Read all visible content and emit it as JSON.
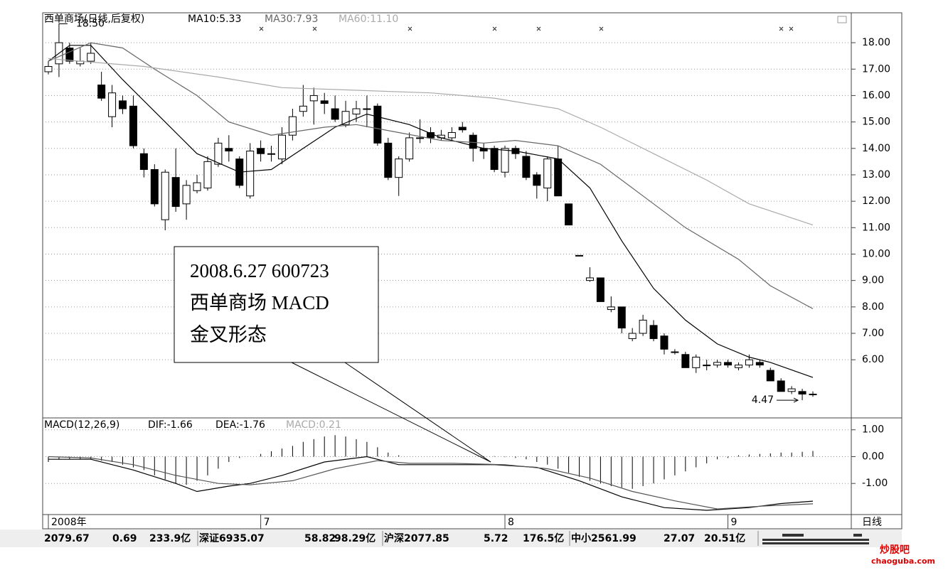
{
  "chart_data": {
    "type": "candlestick",
    "title": "西单商场(日线,后复权)",
    "ma_labels": [
      "MA10:5.33",
      "MA30:7.93",
      "MA60:11.10"
    ],
    "candles": {
      "open": [
        16.9,
        17.2,
        17.8,
        17.2,
        17.3,
        16.4,
        15.2,
        15.8,
        15.6,
        13.8,
        13.2,
        11.3,
        12.9,
        11.9,
        12.4,
        12.5,
        13.4,
        14.0,
        13.6,
        12.2,
        14.0,
        13.8,
        13.6,
        14.5,
        15.4,
        15.8,
        15.8,
        15.5,
        14.9,
        15.3,
        15.5,
        15.6,
        14.2,
        12.9,
        13.6,
        14.4,
        14.6,
        14.4,
        14.4,
        14.8,
        14.5,
        14.0,
        14.0,
        13.1,
        14.0,
        13.7,
        13.0,
        12.5,
        13.6,
        11.9,
        9.95,
        9.0,
        9.1,
        7.9,
        8.0,
        6.8,
        7.0,
        7.3,
        6.9,
        6.3,
        6.2,
        5.7,
        5.8,
        5.8,
        5.9,
        5.7,
        5.8,
        5.9,
        5.6,
        5.2,
        4.8,
        4.8,
        4.7
      ],
      "high": [
        17.3,
        18.5,
        18.0,
        17.8,
        18.0,
        16.9,
        16.4,
        16.0,
        16.0,
        14.0,
        13.4,
        13.2,
        14.0,
        12.8,
        13.0,
        13.7,
        14.4,
        14.5,
        13.7,
        14.2,
        14.3,
        14.1,
        14.8,
        15.5,
        16.4,
        16.3,
        16.1,
        16.0,
        15.8,
        15.8,
        16.0,
        15.7,
        14.4,
        13.7,
        14.6,
        15.1,
        14.8,
        14.7,
        14.8,
        15.0,
        14.6,
        14.2,
        14.1,
        14.1,
        14.1,
        13.9,
        13.1,
        13.7,
        14.1,
        11.9,
        9.95,
        9.5,
        9.1,
        8.4,
        8.0,
        7.2,
        7.7,
        7.5,
        7.0,
        6.4,
        6.3,
        6.2,
        6.0,
        6.0,
        6.0,
        5.9,
        6.2,
        6.0,
        5.7,
        5.3,
        5.0,
        4.9,
        4.8
      ],
      "low": [
        16.8,
        16.7,
        17.2,
        17.1,
        17.2,
        15.8,
        14.8,
        15.3,
        14.0,
        12.9,
        11.8,
        10.9,
        11.6,
        11.3,
        12.3,
        12.4,
        13.3,
        13.5,
        12.5,
        12.1,
        13.5,
        13.5,
        13.4,
        14.3,
        15.2,
        14.9,
        15.3,
        15.0,
        14.8,
        15.0,
        14.8,
        14.1,
        12.8,
        12.2,
        13.5,
        14.2,
        14.2,
        14.3,
        14.3,
        14.6,
        13.5,
        13.6,
        13.1,
        12.9,
        13.6,
        12.8,
        12.1,
        12.0,
        12.2,
        11.1,
        9.95,
        8.95,
        8.2,
        7.8,
        7.0,
        6.7,
        6.9,
        6.7,
        6.2,
        6.2,
        5.7,
        5.5,
        5.6,
        5.7,
        5.7,
        5.6,
        5.7,
        5.7,
        5.2,
        4.8,
        4.7,
        4.47,
        4.6
      ],
      "close": [
        17.1,
        18.0,
        17.3,
        17.3,
        17.6,
        15.9,
        16.1,
        15.5,
        14.1,
        13.2,
        11.9,
        13.1,
        11.8,
        12.6,
        12.7,
        13.5,
        14.2,
        13.9,
        12.6,
        13.9,
        13.8,
        13.8,
        14.5,
        15.2,
        15.6,
        16.0,
        15.7,
        15.1,
        15.4,
        15.5,
        15.5,
        14.2,
        12.9,
        13.6,
        14.4,
        14.4,
        14.4,
        14.5,
        14.6,
        14.7,
        14.0,
        13.9,
        13.2,
        14.0,
        13.8,
        12.9,
        12.6,
        13.6,
        12.2,
        11.1,
        9.95,
        9.1,
        8.2,
        8.0,
        7.2,
        7.0,
        7.5,
        6.8,
        6.4,
        6.3,
        5.7,
        6.1,
        5.8,
        5.9,
        5.8,
        5.8,
        6.0,
        5.8,
        5.2,
        4.8,
        4.9,
        4.7,
        4.7
      ]
    },
    "series": [
      {
        "color": "#000000",
        "x": [
          0,
          2,
          4,
          7,
          11,
          14,
          18,
          21,
          24,
          27,
          30,
          34,
          37,
          41,
          44,
          48,
          51,
          54,
          57,
          60,
          63,
          66,
          68,
          72
        ],
        "values": [
          17.3,
          17.9,
          17.9,
          16.6,
          15.0,
          13.8,
          13.1,
          13.2,
          14.0,
          14.8,
          15.3,
          14.9,
          14.4,
          14.0,
          13.9,
          13.6,
          12.5,
          10.5,
          8.7,
          7.5,
          6.6,
          6.1,
          5.9,
          5.33
        ]
      },
      {
        "color": "#666666",
        "x": [
          0,
          4,
          7,
          10,
          14,
          17,
          21,
          26,
          29,
          33,
          37,
          41,
          44,
          48,
          52,
          56,
          60,
          65,
          68,
          72
        ],
        "values": [
          17.3,
          18.0,
          17.8,
          17.0,
          16.0,
          15.0,
          14.5,
          14.8,
          14.9,
          14.6,
          14.3,
          14.2,
          14.3,
          14.1,
          13.4,
          12.2,
          11.0,
          9.8,
          8.8,
          7.93
        ]
      },
      {
        "color": "#aaaaaa",
        "x": [
          0,
          9,
          16,
          22,
          29,
          36,
          42,
          48,
          52,
          57,
          62,
          66,
          72
        ],
        "values": [
          17.4,
          17.1,
          16.7,
          16.3,
          16.2,
          16.1,
          15.9,
          15.5,
          14.8,
          13.8,
          12.8,
          11.9,
          11.1
        ]
      }
    ],
    "annotations": [
      {
        "x": 1,
        "value": 18.5,
        "label": "18.50"
      },
      {
        "x": 71,
        "value": 4.47,
        "label": "4.47"
      }
    ],
    "xlim": [
      0,
      72
    ],
    "xticks": [
      {
        "value": 0,
        "label": "2008年"
      },
      {
        "value": 20,
        "label": "7"
      },
      {
        "value": 43,
        "label": "8"
      },
      {
        "value": 64,
        "label": "9"
      }
    ],
    "ylim": [
      3.88,
      18.54
    ],
    "yticks": [
      {
        "value": 18,
        "label": "18.00"
      },
      {
        "value": 17,
        "label": "17.00"
      },
      {
        "value": 16,
        "label": "16.00"
      },
      {
        "value": 15,
        "label": "15.00"
      },
      {
        "value": 14,
        "label": "14.00"
      },
      {
        "value": 13,
        "label": "13.00"
      },
      {
        "value": 12,
        "label": "12.00"
      },
      {
        "value": 11,
        "label": "11.00"
      },
      {
        "value": 10,
        "label": "10.00"
      },
      {
        "value": 9,
        "label": "9.00"
      },
      {
        "value": 8,
        "label": "8.00"
      },
      {
        "value": 7,
        "label": "7.00"
      },
      {
        "value": 6,
        "label": "6.00"
      }
    ],
    "grid": true,
    "period_label": "日线",
    "callout": [
      "2008.6.27 600723",
      "西单商场 MACD",
      "金叉形态"
    ],
    "macd": {
      "title": "MACD(12,26,9)",
      "labels": [
        "DIF:-1.66",
        "DEA:-1.76",
        "MACD:0.21"
      ],
      "ylim": [
        -2.16,
        1.39
      ],
      "yticks": [
        {
          "value": 1,
          "label": "1.00"
        },
        {
          "value": 0,
          "label": "0.00"
        },
        {
          "value": -1,
          "label": "-1.00"
        }
      ],
      "histogram": [
        -0.2,
        -0.1,
        -0.1,
        -0.1,
        -0.1,
        -0.15,
        -0.2,
        -0.3,
        -0.4,
        -0.5,
        -0.7,
        -0.85,
        -1.0,
        -1.05,
        -0.9,
        -0.7,
        -0.45,
        -0.2,
        -0.05,
        0.0,
        0.1,
        0.2,
        0.3,
        0.4,
        0.55,
        0.65,
        0.75,
        0.8,
        0.75,
        0.65,
        0.55,
        0.35,
        0.15,
        0.05,
        0,
        0,
        0,
        0,
        0,
        0,
        0,
        0.02,
        0.02,
        -0.02,
        -0.05,
        -0.1,
        -0.2,
        -0.3,
        -0.45,
        -0.6,
        -0.75,
        -0.9,
        -1.0,
        -1.1,
        -1.15,
        -1.2,
        -1.1,
        -1.0,
        -0.85,
        -0.7,
        -0.55,
        -0.4,
        -0.25,
        -0.1,
        -0.05,
        0.05,
        0.08,
        0.1,
        0.12,
        0.15,
        0.15,
        0.18,
        0.21
      ],
      "lines": [
        {
          "color": "#000000",
          "x": [
            0,
            4,
            8,
            12,
            14,
            17,
            19,
            22,
            26,
            30,
            33,
            37,
            42,
            46,
            50,
            54,
            58,
            62,
            66,
            69,
            72
          ],
          "values": [
            -0.1,
            -0.1,
            -0.5,
            -1.0,
            -1.3,
            -1.1,
            -1.0,
            -0.7,
            -0.2,
            0.0,
            -0.3,
            -0.3,
            -0.3,
            -0.4,
            -0.9,
            -1.5,
            -1.9,
            -2.0,
            -1.9,
            -1.75,
            -1.66
          ]
        },
        {
          "color": "#555555",
          "x": [
            0,
            4,
            8,
            12,
            16,
            19,
            23,
            27,
            31,
            34,
            38,
            43,
            47,
            51,
            55,
            59,
            63,
            67,
            72
          ],
          "values": [
            0.0,
            -0.05,
            -0.3,
            -0.7,
            -1.0,
            -1.05,
            -0.9,
            -0.45,
            -0.15,
            -0.25,
            -0.25,
            -0.3,
            -0.45,
            -0.8,
            -1.3,
            -1.65,
            -1.95,
            -1.85,
            -1.76
          ]
        }
      ]
    },
    "ticker": [
      "2079.67",
      "0.69",
      "233.9亿",
      "深证6935.07",
      "58.82",
      "98.29亿",
      "沪深2077.85",
      "5.72",
      "176.5亿",
      "中小2561.99",
      "27.07",
      "20.51亿"
    ],
    "watermark": [
      "炒股吧",
      "chaoguba.com"
    ]
  }
}
